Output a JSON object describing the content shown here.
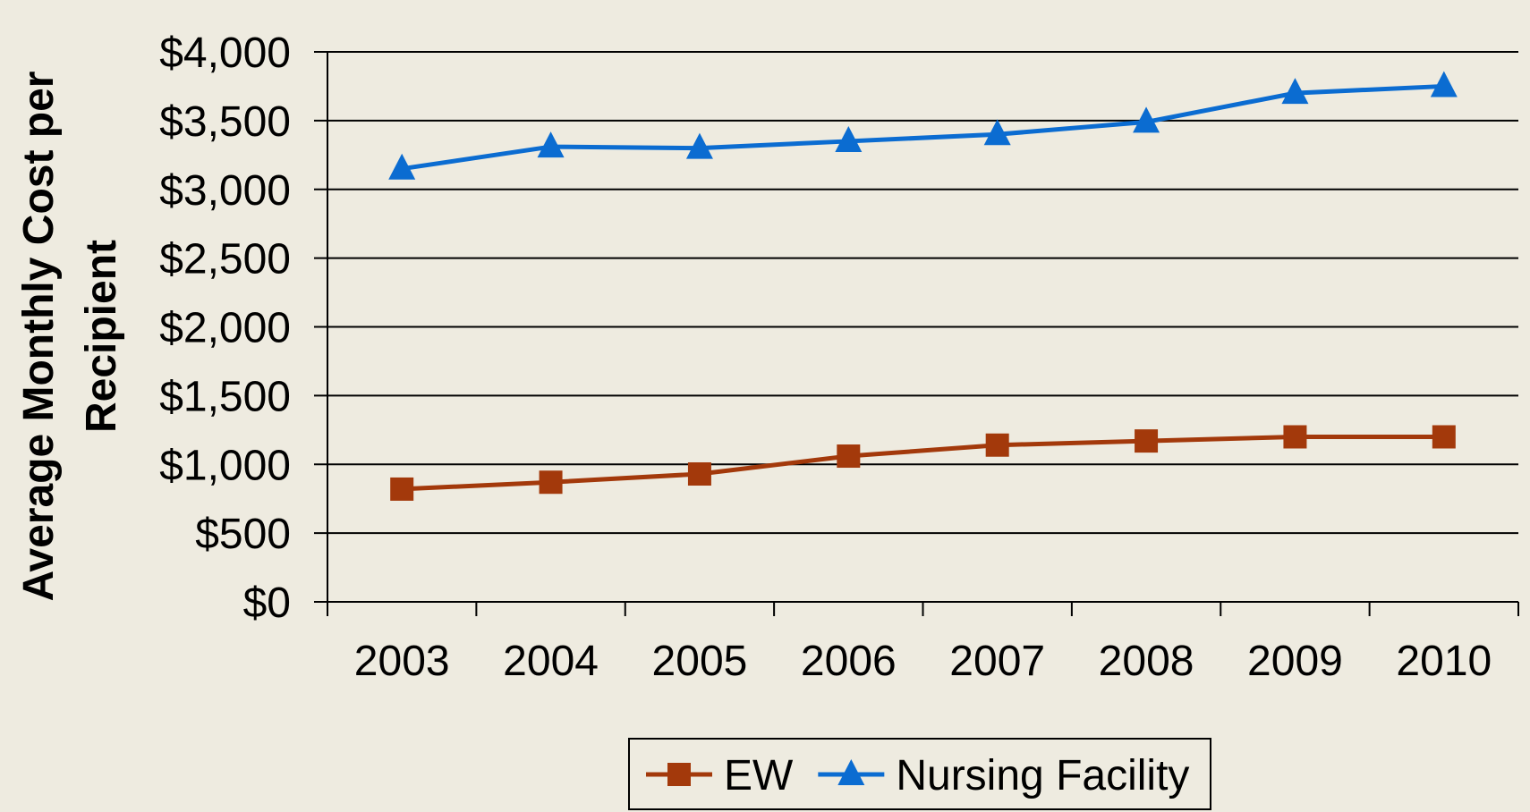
{
  "chart_data": {
    "type": "line",
    "y_label": "Average Monthly Cost per Recipient",
    "categories": [
      "2003",
      "2004",
      "2005",
      "2006",
      "2007",
      "2008",
      "2009",
      "2010"
    ],
    "series": [
      {
        "name": "EW",
        "color": "#a3390b",
        "marker": "square",
        "values": [
          820,
          870,
          930,
          1060,
          1140,
          1170,
          1200,
          1200
        ]
      },
      {
        "name": "Nursing Facility",
        "color": "#0b6cd1",
        "marker": "triangle",
        "values": [
          3150,
          3310,
          3300,
          3350,
          3400,
          3490,
          3700,
          3750
        ]
      }
    ],
    "ylim": [
      0,
      4000
    ],
    "yticks": [
      {
        "value": 0,
        "label": "$0"
      },
      {
        "value": 500,
        "label": "$500"
      },
      {
        "value": 1000,
        "label": "$1,000"
      },
      {
        "value": 1500,
        "label": "$1,500"
      },
      {
        "value": 2000,
        "label": "$2,000"
      },
      {
        "value": 2500,
        "label": "$2,500"
      },
      {
        "value": 3000,
        "label": "$3,000"
      },
      {
        "value": 3500,
        "label": "$3,500"
      },
      {
        "value": 4000,
        "label": "$4,000"
      }
    ],
    "grid": true,
    "legend": "bottom"
  }
}
